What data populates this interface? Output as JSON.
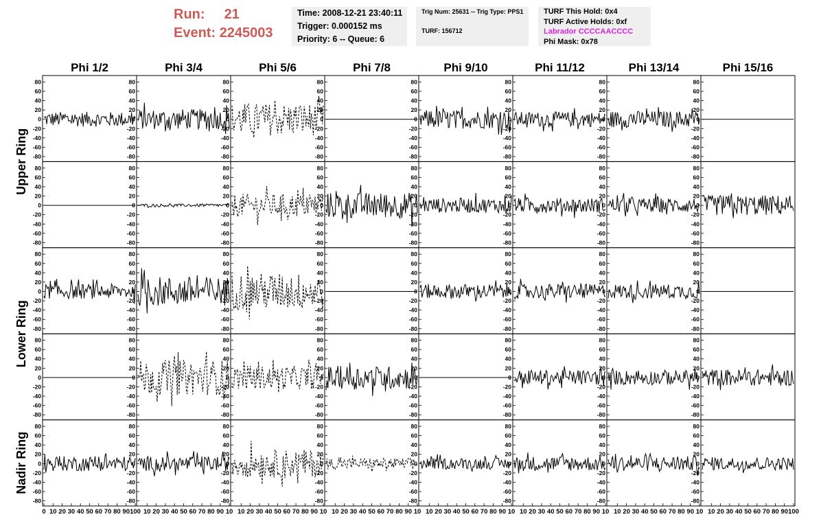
{
  "header": {
    "run_label": "Run:",
    "run_value": "21",
    "event_label": "Event:",
    "event_value": "2245003",
    "time": "Time: 2008-12-21 23:40:11",
    "trigger": "Trigger: 0.000152 ms",
    "priority": "Priority: 6 -- Queue: 6",
    "trig_num": "Trig Num: 25631 -- Trig Type: PPS1",
    "turf": "TURF: 156712",
    "turf_this_hold": "TURF This Hold: 0x4",
    "turf_active_holds": "TURF Active Holds: 0xf",
    "labrador": "Labrador CCCCAACCCC",
    "phi_mask": "Phi Mask: 0x78",
    "accent_color": "#cc5a55",
    "labrador_color": "#e020e0"
  },
  "chart_data": {
    "type": "line",
    "columns": [
      "Phi 1/2",
      "Phi 3/4",
      "Phi 5/6",
      "Phi 7/8",
      "Phi 9/10",
      "Phi 11/12",
      "Phi 13/14",
      "Phi 15/16"
    ],
    "ring_labels": [
      "Upper Ring",
      "Lower Ring",
      "Nadir Ring"
    ],
    "rows": 5,
    "ylim": [
      -85,
      85
    ],
    "xlim": [
      0,
      100
    ],
    "yticks": [
      80,
      60,
      40,
      20,
      0,
      -20,
      -40,
      -60,
      -80
    ],
    "ytick_labels": [
      "80",
      "60",
      "40",
      "20",
      "0",
      "-20",
      "-40",
      "-60",
      "-80"
    ],
    "xticks_first": [
      "0",
      "10",
      "20",
      "30",
      "40",
      "50",
      "60",
      "70",
      "80",
      "90",
      "100"
    ],
    "xticks_mid": [
      "10",
      "20",
      "30",
      "40",
      "50",
      "60",
      "70",
      "80",
      "90",
      "10"
    ],
    "xticks_last": [
      "10",
      "20",
      "30",
      "40",
      "50",
      "60",
      "70",
      "80",
      "90",
      "100"
    ],
    "samples": 100,
    "amplitudes": [
      [
        16,
        22,
        35,
        0,
        20,
        16,
        18,
        0
      ],
      [
        0,
        3,
        25,
        28,
        16,
        16,
        16,
        22
      ],
      [
        16,
        32,
        40,
        0,
        16,
        16,
        16,
        0
      ],
      [
        0,
        38,
        25,
        25,
        0,
        16,
        16,
        18
      ],
      [
        16,
        16,
        30,
        12,
        12,
        16,
        16,
        14
      ]
    ],
    "dashed": [
      [
        false,
        false,
        true,
        false,
        false,
        false,
        false,
        false
      ],
      [
        false,
        false,
        true,
        false,
        false,
        false,
        false,
        false
      ],
      [
        false,
        false,
        true,
        false,
        false,
        false,
        false,
        false
      ],
      [
        false,
        true,
        true,
        false,
        false,
        false,
        false,
        false
      ],
      [
        false,
        false,
        true,
        true,
        false,
        false,
        false,
        false
      ]
    ]
  }
}
